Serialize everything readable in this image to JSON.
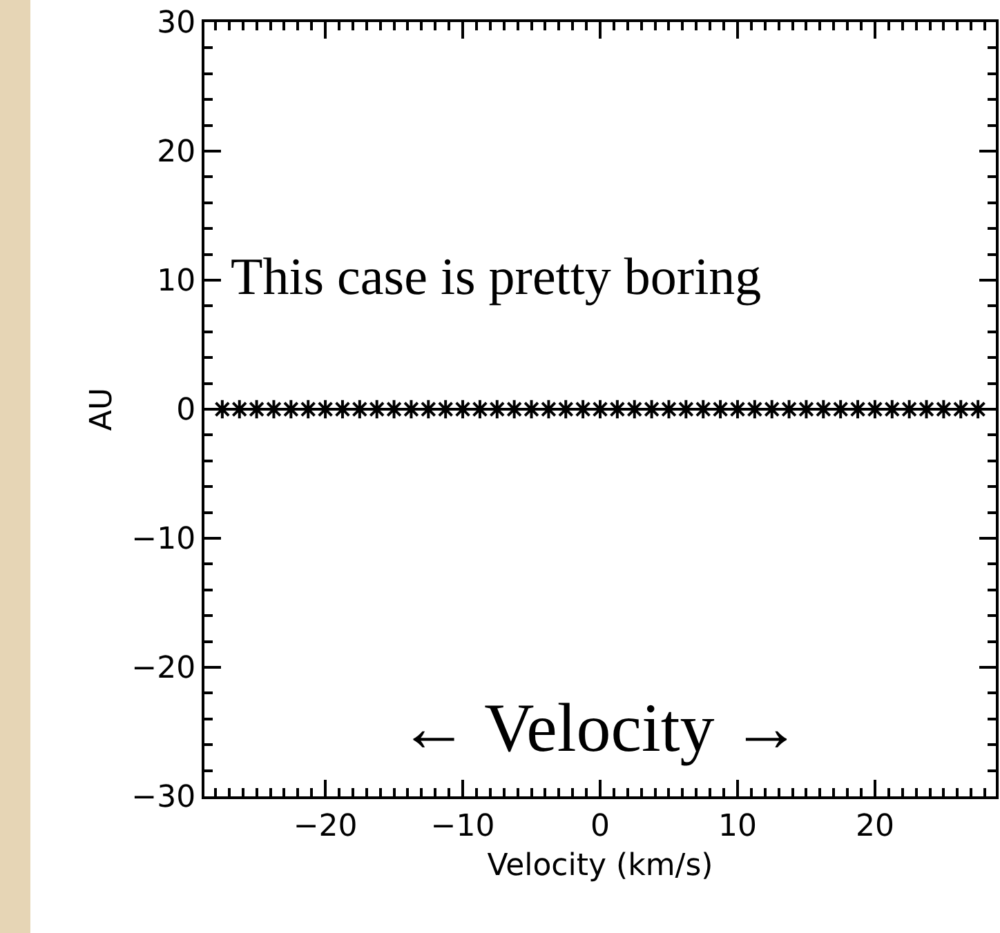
{
  "chart_data": {
    "type": "scatter",
    "xlabel": "Velocity (km/s)",
    "ylabel": "AU",
    "annotations": [
      "This case is pretty boring",
      "← Velocity →"
    ],
    "x": [
      -27.5,
      -26.25,
      -25,
      -23.75,
      -22.5,
      -21.25,
      -20,
      -18.75,
      -17.5,
      -16.25,
      -15,
      -13.75,
      -12.5,
      -11.25,
      -10,
      -8.75,
      -7.5,
      -6.25,
      -5,
      -3.75,
      -2.5,
      -1.25,
      0,
      1.25,
      2.5,
      3.75,
      5,
      6.25,
      7.5,
      8.75,
      10,
      11.25,
      12.5,
      13.75,
      15,
      16.25,
      17.5,
      18.75,
      20,
      21.25,
      22.5,
      23.75,
      25,
      26.25,
      27.5
    ],
    "series": [
      {
        "color": "#000000",
        "values": [
          0,
          0,
          0,
          0,
          0,
          0,
          0,
          0,
          0,
          0,
          0,
          0,
          0,
          0,
          0,
          0,
          0,
          0,
          0,
          0,
          0,
          0,
          0,
          0,
          0,
          0,
          0,
          0,
          0,
          0,
          0,
          0,
          0,
          0,
          0,
          0,
          0,
          0,
          0,
          0,
          0,
          0,
          0,
          0,
          0
        ]
      }
    ],
    "xlim": [
      -28.8,
      28.8
    ],
    "ylim": [
      -30,
      30
    ],
    "xticks": [
      -20,
      -10,
      0,
      10,
      20
    ],
    "yticks": [
      -30,
      -20,
      -10,
      0,
      10,
      20,
      30
    ],
    "marker": "cross"
  }
}
